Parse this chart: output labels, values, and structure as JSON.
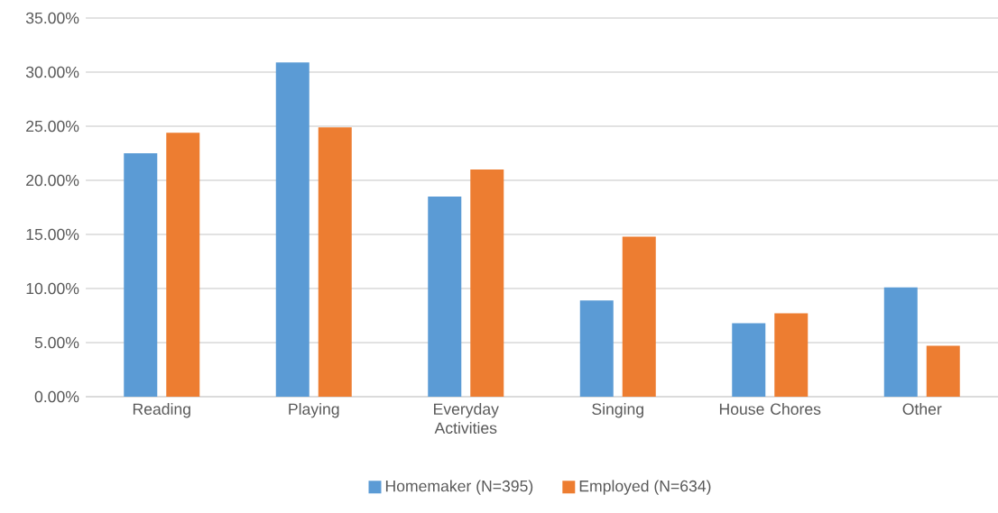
{
  "chart_data": {
    "type": "bar",
    "categories": [
      "Reading",
      "Playing",
      "Everyday Activities",
      "Singing",
      "House Chores",
      "Other"
    ],
    "series": [
      {
        "name": "Homemaker (N=395)",
        "color": "#5b9bd5",
        "values": [
          22.5,
          30.9,
          18.5,
          8.9,
          6.8,
          10.1
        ]
      },
      {
        "name": "Employed (N=634)",
        "color": "#ed7d31",
        "values": [
          24.4,
          24.9,
          21.0,
          14.8,
          7.7,
          4.7
        ]
      }
    ],
    "ylim": [
      0,
      35
    ],
    "yticks": [
      {
        "value": 0,
        "label": "0.00%"
      },
      {
        "value": 5,
        "label": "5.00%"
      },
      {
        "value": 10,
        "label": "10.00%"
      },
      {
        "value": 15,
        "label": "15.00%"
      },
      {
        "value": 20,
        "label": "20.00%"
      },
      {
        "value": 25,
        "label": "25.00%"
      },
      {
        "value": 30,
        "label": "30.00%"
      },
      {
        "value": 35,
        "label": "35.00%"
      }
    ],
    "grid": "y",
    "legend": "bottom"
  }
}
